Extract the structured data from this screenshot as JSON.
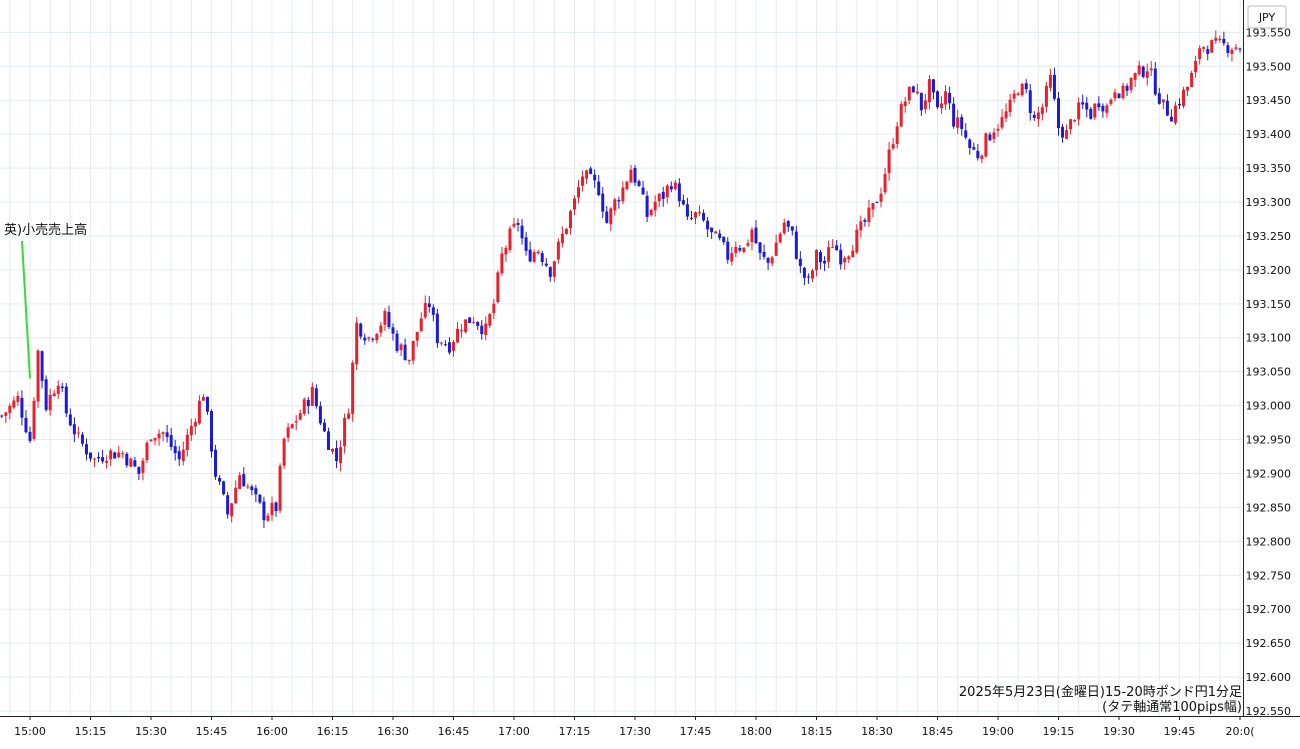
{
  "chart_data": {
    "type": "candlestick",
    "currency_label": "JPY",
    "caption_line1": "2025年5月23日(金曜日)15-20時ポンド円1分足",
    "caption_line2": "(タテ軸通常100pips幅)",
    "annotation": {
      "label": "英)小売売上高",
      "time": "15:00"
    },
    "y_axis": {
      "ticks": [
        "193.550",
        "193.500",
        "193.450",
        "193.400",
        "193.350",
        "193.300",
        "193.250",
        "193.200",
        "193.150",
        "193.100",
        "193.050",
        "193.000",
        "192.950",
        "192.900",
        "192.850",
        "192.800",
        "192.750",
        "192.700",
        "192.650",
        "192.600",
        "192.550"
      ],
      "ylim": [
        192.55,
        193.58
      ]
    },
    "x_axis": {
      "ticks": [
        "15:00",
        "15:15",
        "15:30",
        "15:45",
        "16:00",
        "16:15",
        "16:30",
        "16:45",
        "17:00",
        "17:15",
        "17:30",
        "17:45",
        "18:00",
        "18:15",
        "18:30",
        "18:45",
        "19:00",
        "19:15",
        "19:30",
        "19:45",
        "20:0("
      ],
      "start_offset_min": -7,
      "end_offset_min": 301
    },
    "colors": {
      "up": "#e8202a",
      "down": "#1a1ad8",
      "grid": "#e3ecf0",
      "annotation_line": "#33dd33"
    },
    "close_path": [
      [
        -7,
        192.985
      ],
      [
        -3,
        193.01
      ],
      [
        0,
        192.95
      ],
      [
        2,
        193.08
      ],
      [
        4,
        193.0
      ],
      [
        7,
        193.04
      ],
      [
        9,
        192.99
      ],
      [
        12,
        192.95
      ],
      [
        16,
        192.92
      ],
      [
        19,
        192.93
      ],
      [
        23,
        192.93
      ],
      [
        27,
        192.9
      ],
      [
        30,
        192.96
      ],
      [
        33,
        192.96
      ],
      [
        37,
        192.92
      ],
      [
        40,
        192.97
      ],
      [
        43,
        193.02
      ],
      [
        46,
        192.9
      ],
      [
        49,
        192.84
      ],
      [
        52,
        192.9
      ],
      [
        55,
        192.87
      ],
      [
        58,
        192.84
      ],
      [
        61,
        192.85
      ],
      [
        63,
        192.95
      ],
      [
        66,
        192.98
      ],
      [
        70,
        193.02
      ],
      [
        73,
        192.96
      ],
      [
        76,
        192.92
      ],
      [
        79,
        193.0
      ],
      [
        81,
        193.12
      ],
      [
        84,
        193.1
      ],
      [
        88,
        193.13
      ],
      [
        91,
        193.09
      ],
      [
        94,
        193.07
      ],
      [
        97,
        193.13
      ],
      [
        99,
        193.15
      ],
      [
        101,
        193.1
      ],
      [
        104,
        193.09
      ],
      [
        107,
        193.12
      ],
      [
        110,
        193.13
      ],
      [
        113,
        193.11
      ],
      [
        115,
        193.15
      ],
      [
        117,
        193.22
      ],
      [
        119,
        193.25
      ],
      [
        121,
        193.27
      ],
      [
        123,
        193.22
      ],
      [
        126,
        193.23
      ],
      [
        129,
        193.2
      ],
      [
        132,
        193.25
      ],
      [
        135,
        193.3
      ],
      [
        137,
        193.34
      ],
      [
        139,
        193.33
      ],
      [
        141,
        193.32
      ],
      [
        143,
        193.27
      ],
      [
        145,
        193.3
      ],
      [
        147,
        193.32
      ],
      [
        149,
        193.35
      ],
      [
        151,
        193.32
      ],
      [
        153,
        193.28
      ],
      [
        155,
        193.3
      ],
      [
        157,
        193.31
      ],
      [
        159,
        193.33
      ],
      [
        161,
        193.31
      ],
      [
        163,
        193.27
      ],
      [
        165,
        193.28
      ],
      [
        167,
        193.27
      ],
      [
        169,
        193.25
      ],
      [
        171,
        193.24
      ],
      [
        173,
        193.22
      ],
      [
        175,
        193.24
      ],
      [
        177,
        193.23
      ],
      [
        179,
        193.26
      ],
      [
        181,
        193.22
      ],
      [
        183,
        193.21
      ],
      [
        185,
        193.24
      ],
      [
        187,
        193.27
      ],
      [
        189,
        193.25
      ],
      [
        191,
        193.2
      ],
      [
        193,
        193.18
      ],
      [
        195,
        193.22
      ],
      [
        197,
        193.21
      ],
      [
        199,
        193.24
      ],
      [
        201,
        193.22
      ],
      [
        203,
        193.23
      ],
      [
        205,
        193.25
      ],
      [
        207,
        193.27
      ],
      [
        209,
        193.29
      ],
      [
        211,
        193.32
      ],
      [
        213,
        193.37
      ],
      [
        215,
        193.42
      ],
      [
        217,
        193.45
      ],
      [
        219,
        193.47
      ],
      [
        221,
        193.44
      ],
      [
        223,
        193.47
      ],
      [
        225,
        193.43
      ],
      [
        227,
        193.46
      ],
      [
        229,
        193.42
      ],
      [
        231,
        193.41
      ],
      [
        233,
        193.38
      ],
      [
        235,
        193.37
      ],
      [
        237,
        193.39
      ],
      [
        239,
        193.41
      ],
      [
        241,
        193.42
      ],
      [
        243,
        193.44
      ],
      [
        245,
        193.47
      ],
      [
        247,
        193.46
      ],
      [
        249,
        193.42
      ],
      [
        251,
        193.44
      ],
      [
        253,
        193.48
      ],
      [
        255,
        193.41
      ],
      [
        257,
        193.4
      ],
      [
        259,
        193.43
      ],
      [
        261,
        193.44
      ],
      [
        263,
        193.43
      ],
      [
        265,
        193.45
      ],
      [
        267,
        193.44
      ],
      [
        269,
        193.47
      ],
      [
        271,
        193.46
      ],
      [
        273,
        193.48
      ],
      [
        275,
        193.49
      ],
      [
        277,
        193.5
      ],
      [
        279,
        193.47
      ],
      [
        281,
        193.44
      ],
      [
        283,
        193.43
      ],
      [
        285,
        193.45
      ],
      [
        287,
        193.47
      ],
      [
        289,
        193.5
      ],
      [
        290,
        193.53
      ]
    ]
  }
}
